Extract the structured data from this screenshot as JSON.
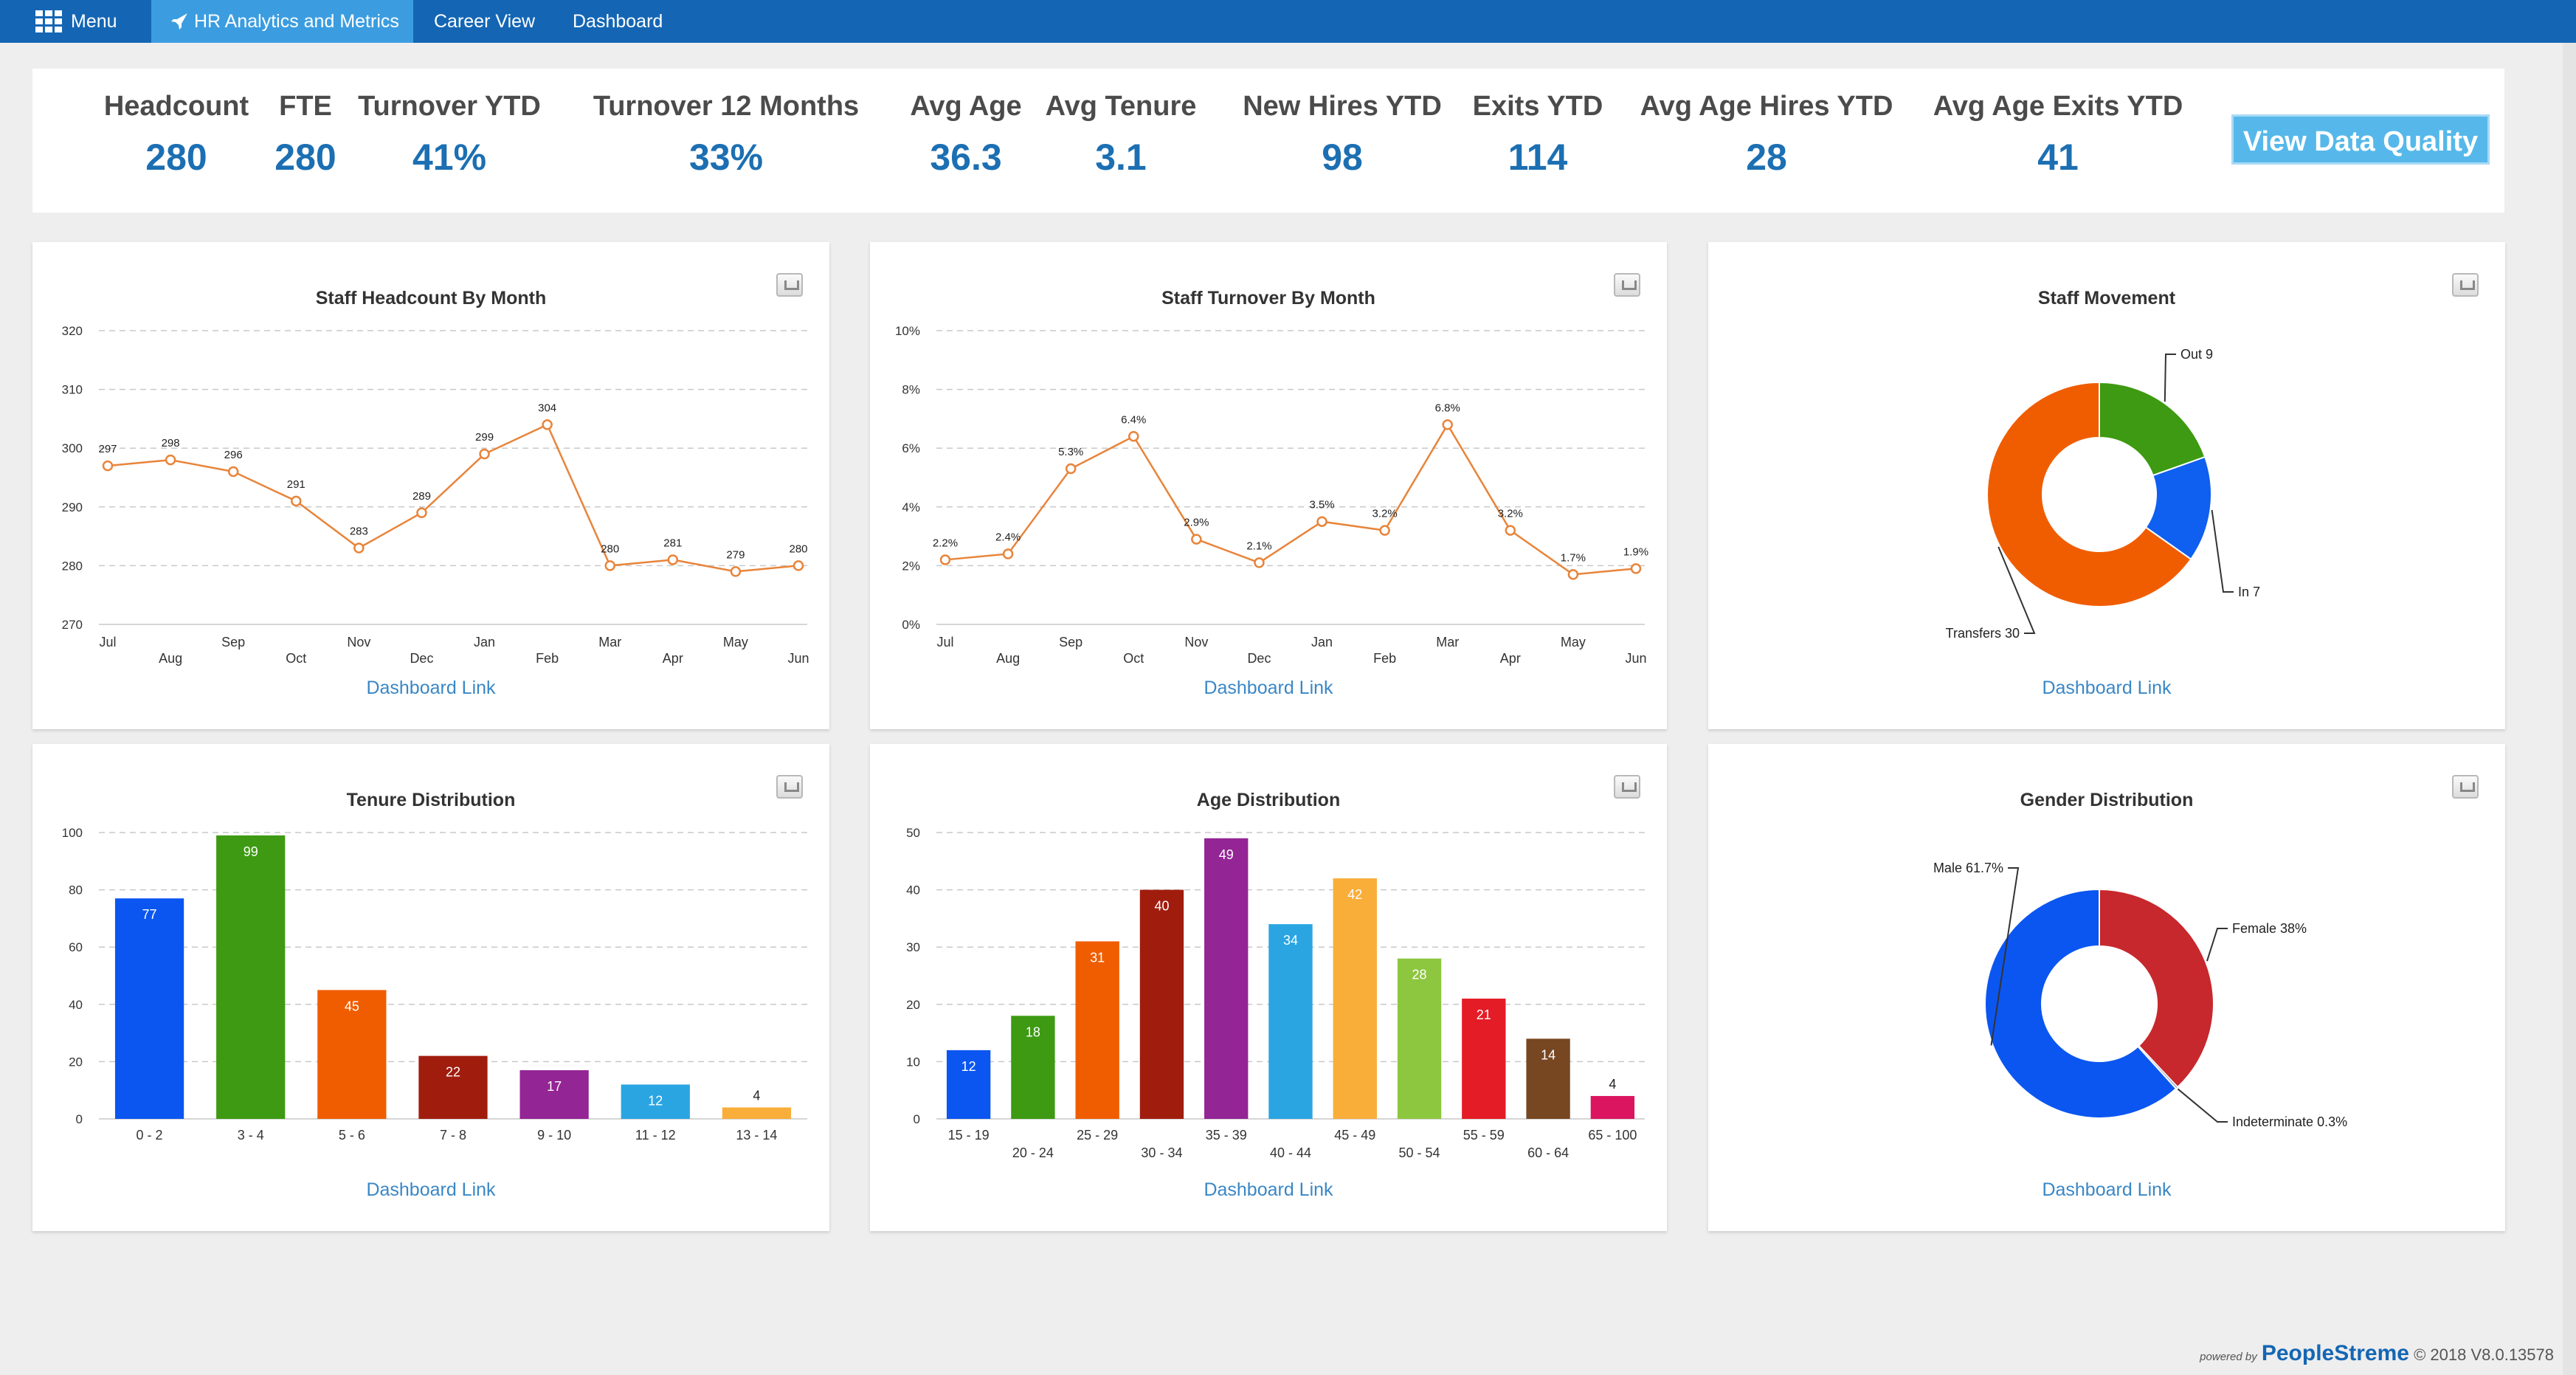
{
  "nav": {
    "menu_label": "Menu",
    "hr_label": "HR Analytics and Metrics",
    "career_label": "Career View",
    "dashboard_label": "Dashboard"
  },
  "kpis": [
    {
      "label": "Headcount",
      "value": "280"
    },
    {
      "label": "FTE",
      "value": "280"
    },
    {
      "label": "Turnover YTD",
      "value": "41%"
    },
    {
      "label": "Turnover 12 Months",
      "value": "33%"
    },
    {
      "label": "Avg Age",
      "value": "36.3"
    },
    {
      "label": "Avg Tenure",
      "value": "3.1"
    },
    {
      "label": "New Hires YTD",
      "value": "98"
    },
    {
      "label": "Exits YTD",
      "value": "114"
    },
    {
      "label": "Avg Age Hires YTD",
      "value": "28"
    },
    {
      "label": "Avg Age Exits YTD",
      "value": "41"
    }
  ],
  "data_quality_button": "View Data Quality",
  "dashboard_link": "Dashboard Link",
  "footer": {
    "powered_by": "powered by",
    "brand": "PeopleStreme",
    "version": "© 2018 V8.0.13578"
  },
  "chart_data": [
    {
      "type": "line",
      "title": "Staff Headcount By Month",
      "categories": [
        "Jul",
        "Aug",
        "Sep",
        "Oct",
        "Nov",
        "Dec",
        "Jan",
        "Feb",
        "Mar",
        "Apr",
        "May",
        "Jun"
      ],
      "values": [
        297,
        298,
        296,
        291,
        283,
        289,
        299,
        304,
        280,
        281,
        279,
        280
      ],
      "labels": [
        "297",
        "298",
        "296",
        "291",
        "283",
        "289",
        "299",
        "304",
        "280",
        "281",
        "279",
        "280"
      ],
      "ylim": [
        270,
        320
      ],
      "yticks": [
        270,
        280,
        290,
        300,
        310,
        320
      ],
      "color": "#e8843a",
      "grid": true
    },
    {
      "type": "line",
      "title": "Staff Turnover By Month",
      "categories": [
        "Jul",
        "Aug",
        "Sep",
        "Oct",
        "Nov",
        "Dec",
        "Jan",
        "Feb",
        "Mar",
        "Apr",
        "May",
        "Jun"
      ],
      "values": [
        2.2,
        2.4,
        5.3,
        6.4,
        2.9,
        2.1,
        3.5,
        3.2,
        6.8,
        3.2,
        1.7,
        1.9
      ],
      "labels": [
        "2.2%",
        "2.4%",
        "5.3%",
        "6.4%",
        "2.9%",
        "2.1%",
        "3.5%",
        "3.2%",
        "6.8%",
        "3.2%",
        "1.7%",
        "1.9%"
      ],
      "ylim": [
        0,
        10
      ],
      "yticks": [
        0,
        2,
        4,
        6,
        8,
        10
      ],
      "ytick_suffix": "%",
      "color": "#e8843a",
      "grid": true
    },
    {
      "type": "pie",
      "title": "Staff Movement",
      "slices": [
        {
          "label": "Out 9",
          "value": 9,
          "color": "#3d9a12"
        },
        {
          "label": "In 7",
          "value": 7,
          "color": "#0f5ff0"
        },
        {
          "label": "Transfers 30",
          "value": 30,
          "color": "#f05d00"
        }
      ]
    },
    {
      "type": "bar",
      "title": "Tenure Distribution",
      "categories": [
        "0 - 2",
        "3 - 4",
        "5 - 6",
        "7 - 8",
        "9 - 10",
        "11 - 12",
        "13 - 14"
      ],
      "values": [
        77,
        99,
        45,
        22,
        17,
        12,
        4
      ],
      "colors": [
        "#0b56f0",
        "#3d9a12",
        "#f05d00",
        "#a01d0e",
        "#932594",
        "#2aa5e2",
        "#f9ae3a"
      ],
      "ylim": [
        0,
        100
      ],
      "yticks": [
        0,
        20,
        40,
        60,
        80,
        100
      ],
      "grid": true
    },
    {
      "type": "bar",
      "title": "Age Distribution",
      "categories": [
        "15 - 19",
        "20 - 24",
        "25 - 29",
        "30 - 34",
        "35 - 39",
        "40 - 44",
        "45 - 49",
        "50 - 54",
        "55 - 59",
        "60 - 64",
        "65 - 100"
      ],
      "values": [
        12,
        18,
        31,
        40,
        49,
        34,
        42,
        28,
        21,
        14,
        4
      ],
      "colors": [
        "#0b56f0",
        "#3d9a12",
        "#f05d00",
        "#a01d0e",
        "#932594",
        "#2aa5e2",
        "#f9ae3a",
        "#8dc63f",
        "#e41c26",
        "#774722",
        "#db1560"
      ],
      "ylim": [
        0,
        50
      ],
      "yticks": [
        0,
        10,
        20,
        30,
        40,
        50
      ],
      "grid": true
    },
    {
      "type": "pie",
      "title": "Gender Distribution",
      "slices": [
        {
          "label": "Female 38%",
          "value": 38,
          "color": "#c7282d"
        },
        {
          "label": "Indeterminate 0.3%",
          "value": 0.3,
          "color": "#8aa8c8"
        },
        {
          "label": "Male 61.7%",
          "value": 61.7,
          "color": "#0b56f0"
        }
      ]
    }
  ]
}
